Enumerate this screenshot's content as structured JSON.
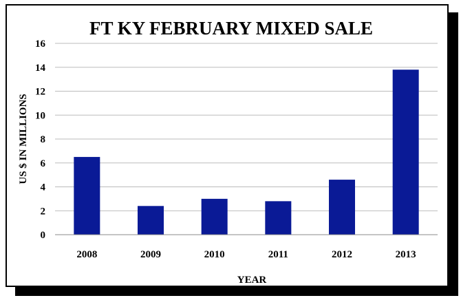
{
  "chart_data": {
    "type": "bar",
    "title": "FT KY FEBRUARY MIXED SALE",
    "xlabel": "YEAR",
    "ylabel": "US $ IN MILLIONS",
    "categories": [
      "2008",
      "2009",
      "2010",
      "2011",
      "2012",
      "2013"
    ],
    "values": [
      6.5,
      2.4,
      3.0,
      2.8,
      4.6,
      13.8
    ],
    "ylim": [
      0,
      16
    ],
    "yticks": [
      0,
      2,
      4,
      6,
      8,
      10,
      12,
      14,
      16
    ],
    "grid": true,
    "legend": "none",
    "bar_color": "#0A1A96",
    "grid_color": "#BBBBBB"
  }
}
